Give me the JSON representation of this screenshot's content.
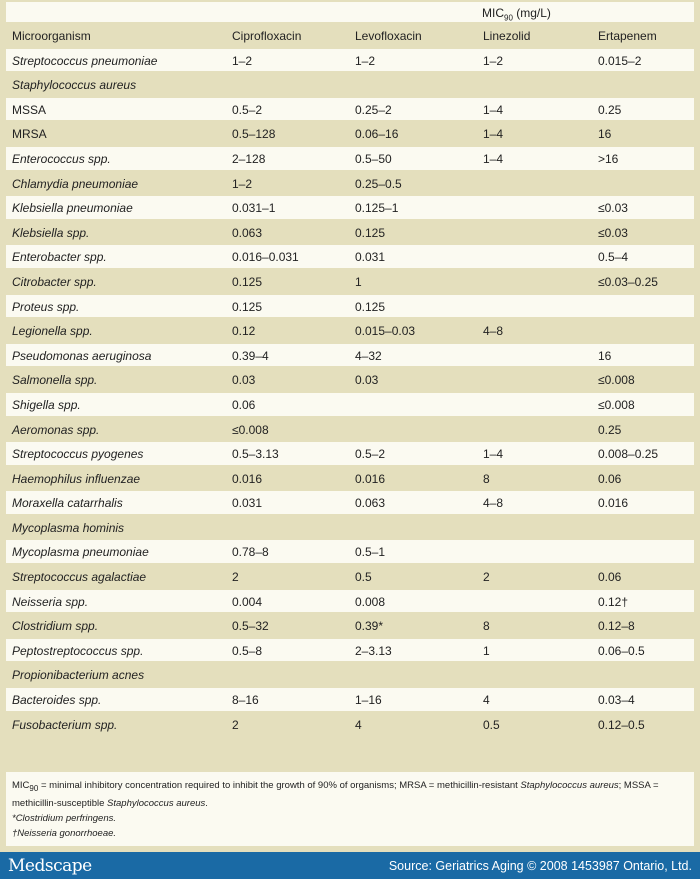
{
  "header": {
    "mic_label": "MIC",
    "mic_sub": "90",
    "mic_unit": " (mg/L)"
  },
  "columns": [
    "Microorganism",
    "Ciprofloxacin",
    "Levofloxacin",
    "Linezolid",
    "Ertapenem"
  ],
  "rows": [
    {
      "name": "Streptococcus pneumoniae",
      "italic": true,
      "v": [
        "1–2",
        "1–2",
        "1–2",
        "0.015–2"
      ]
    },
    {
      "name": "Staphylococcus aureus",
      "italic": true,
      "v": [
        "",
        "",
        "",
        ""
      ]
    },
    {
      "name": "MSSA",
      "italic": false,
      "v": [
        "0.5–2",
        "0.25–2",
        "1–4",
        "0.25"
      ]
    },
    {
      "name": "MRSA",
      "italic": false,
      "v": [
        "0.5–128",
        "0.06–16",
        "1–4",
        "16"
      ]
    },
    {
      "name": "Enterococcus spp.",
      "italic": true,
      "v": [
        "2–128",
        "0.5–50",
        "1–4",
        ">16"
      ]
    },
    {
      "name": "Chlamydia pneumoniae",
      "italic": true,
      "v": [
        "1–2",
        "0.25–0.5",
        "",
        ""
      ]
    },
    {
      "name": "Klebsiella pneumoniae",
      "italic": true,
      "v": [
        "0.031–1",
        "0.125–1",
        "",
        "≤0.03"
      ]
    },
    {
      "name": "Klebsiella spp.",
      "italic": true,
      "v": [
        "0.063",
        "0.125",
        "",
        "≤0.03"
      ]
    },
    {
      "name": "Enterobacter spp.",
      "italic": true,
      "v": [
        "0.016–0.031",
        "0.031",
        "",
        "0.5–4"
      ]
    },
    {
      "name": "Citrobacter spp.",
      "italic": true,
      "v": [
        "0.125",
        "1",
        "",
        "≤0.03–0.25"
      ]
    },
    {
      "name": "Proteus spp.",
      "italic": true,
      "v": [
        "0.125",
        "0.125",
        "",
        ""
      ]
    },
    {
      "name": "Legionella spp.",
      "italic": true,
      "v": [
        "0.12",
        "0.015–0.03",
        "4–8",
        ""
      ]
    },
    {
      "name": "Pseudomonas aeruginosa",
      "italic": true,
      "v": [
        "0.39–4",
        "4–32",
        "",
        "16"
      ]
    },
    {
      "name": "Salmonella spp.",
      "italic": true,
      "v": [
        "0.03",
        "0.03",
        "",
        "≤0.008"
      ]
    },
    {
      "name": "Shigella spp.",
      "italic": true,
      "v": [
        "0.06",
        "",
        "",
        "≤0.008"
      ]
    },
    {
      "name": "Aeromonas spp.",
      "italic": true,
      "v": [
        "≤0.008",
        "",
        "",
        "0.25"
      ]
    },
    {
      "name": "Streptococcus pyogenes",
      "italic": true,
      "v": [
        "0.5–3.13",
        "0.5–2",
        "1–4",
        "0.008–0.25"
      ]
    },
    {
      "name": "Haemophilus influenzae",
      "italic": true,
      "v": [
        "0.016",
        "0.016",
        "8",
        "0.06"
      ]
    },
    {
      "name": "Moraxella catarrhalis",
      "italic": true,
      "v": [
        "0.031",
        "0.063",
        "4–8",
        "0.016"
      ]
    },
    {
      "name": "Mycoplasma hominis",
      "italic": true,
      "v": [
        "",
        "",
        "",
        ""
      ]
    },
    {
      "name": "Mycoplasma pneumoniae",
      "italic": true,
      "v": [
        "0.78–8",
        "0.5–1",
        "",
        ""
      ]
    },
    {
      "name": "Streptococcus agalactiae",
      "italic": true,
      "v": [
        "2",
        "0.5",
        "2",
        "0.06"
      ]
    },
    {
      "name": "Neisseria spp.",
      "italic": true,
      "v": [
        "0.004",
        "0.008",
        "",
        "0.12†"
      ]
    },
    {
      "name": "Clostridium spp.",
      "italic": true,
      "v": [
        "0.5–32",
        "0.39*",
        "8",
        "0.12–8"
      ]
    },
    {
      "name": "Peptostreptococcus spp.",
      "italic": true,
      "v": [
        "0.5–8",
        "2–3.13",
        "1",
        "0.06–0.5"
      ]
    },
    {
      "name": "Propionibacterium acnes",
      "italic": true,
      "v": [
        "",
        "",
        "",
        ""
      ]
    },
    {
      "name": "Bacteroides spp.",
      "italic": true,
      "v": [
        "8–16",
        "1–16",
        "4",
        "0.03–4"
      ]
    },
    {
      "name": "Fusobacterium spp.",
      "italic": true,
      "v": [
        "2",
        "4",
        "0.5",
        "0.12–0.5"
      ]
    }
  ],
  "notes": {
    "n1a": "MIC",
    "n1sub": "90",
    "n1b": " = minimal inhibitory concentration required to inhibit the growth of 90% of organisms; MRSA = methicillin-resistant ",
    "n1c": "Staphylococcus aureus",
    "n1d": "; MSSA = methicillin-susceptible ",
    "n1e": "Staphylococcus aureus",
    "n1f": ".",
    "n2": "*Clostridium perfringens.",
    "n3": "†Neisseria gonorrhoeae."
  },
  "footer": {
    "logo": "Medscape",
    "source": "Source: Geriatrics Aging © 2008 1453987 Ontario, Ltd."
  }
}
